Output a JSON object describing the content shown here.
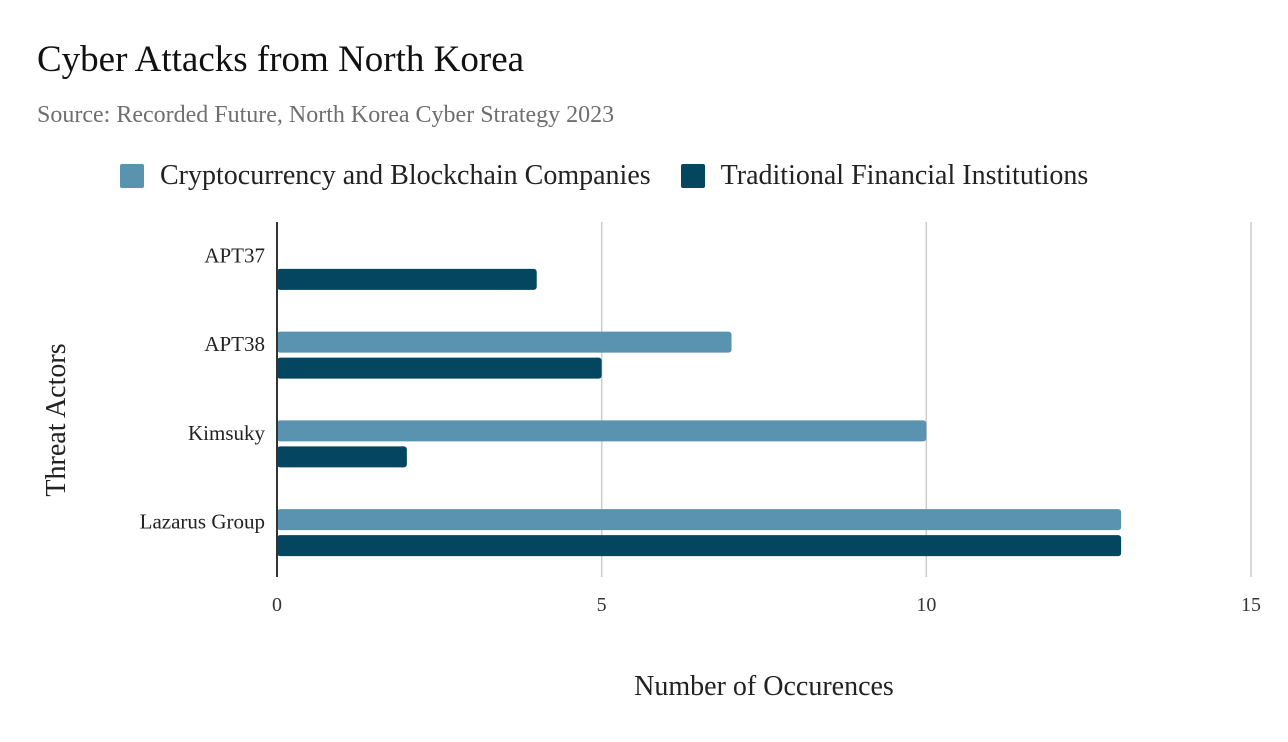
{
  "title": "Cyber Attacks from North Korea",
  "subtitle": "Source: Recorded Future, North Korea Cyber Strategy 2023",
  "colors": {
    "crypto": "#5a93af",
    "traditional": "#04465f",
    "grid": "#cccccc",
    "axis": "#333333"
  },
  "chart_data": {
    "type": "bar",
    "orientation": "horizontal",
    "title": "Cyber Attacks from North Korea",
    "subtitle": "Source: Recorded Future, North Korea Cyber Strategy 2023",
    "categories": [
      "APT37",
      "APT38",
      "Kimsuky",
      "Lazarus Group"
    ],
    "series": [
      {
        "name": "Cryptocurrency and Blockchain Companies",
        "values": [
          0,
          7,
          10,
          13
        ]
      },
      {
        "name": "Traditional Financial Institutions",
        "values": [
          4,
          5,
          2,
          13
        ]
      }
    ],
    "xlabel": "Number of Occurences",
    "ylabel": "Threat Actors",
    "xlim": [
      0,
      15
    ],
    "xticks": [
      "0",
      "5",
      "10",
      "15"
    ],
    "grid": true,
    "legend_position": "top"
  }
}
